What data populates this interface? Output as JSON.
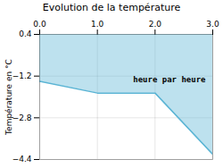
{
  "chart_data": {
    "type": "area",
    "title": "Evolution de la température",
    "ylabel": "Température en °C",
    "x": [
      0,
      1,
      2,
      3
    ],
    "values": [
      -1.4,
      -1.85,
      -1.85,
      -4.2
    ],
    "color": "#5ab4d4",
    "xlim": [
      0,
      3
    ],
    "xticks": [
      0,
      1,
      2,
      3
    ],
    "ylim": [
      -4.4,
      0.4
    ],
    "yticks": [
      0.4,
      -1.2,
      -2.8,
      -4.4
    ],
    "grid": true,
    "annotations": [
      {
        "text": "heure par heure",
        "x": 1.62,
        "y": -1.45
      }
    ]
  }
}
